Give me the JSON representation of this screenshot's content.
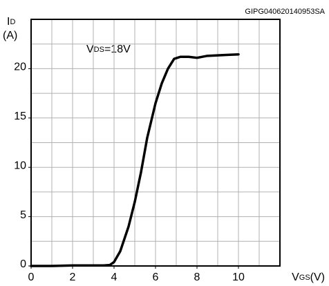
{
  "chart_data": {
    "type": "line",
    "code": "GIPG040620140953SA",
    "ylabel_main": "I",
    "ylabel_sub": "D",
    "ylabel_unit": "(A)",
    "xlabel_main": "V",
    "xlabel_sub": "GS",
    "xlabel_unit": "(V)",
    "annotation_main": "V",
    "annotation_sub": "DS",
    "annotation_rest": "=18V",
    "xlim": [
      0,
      12
    ],
    "ylim": [
      0,
      25
    ],
    "xticks": [
      0,
      2,
      4,
      6,
      8,
      10
    ],
    "yticks": [
      0,
      5,
      10,
      15,
      20
    ],
    "xgrid": [
      1,
      2,
      3,
      4,
      5,
      6,
      7,
      8,
      9,
      10,
      11
    ],
    "ygrid": [
      2.5,
      5,
      7.5,
      10,
      12.5,
      15,
      17.5,
      20,
      22.5
    ],
    "series": [
      {
        "color": "#000000",
        "x": [
          0,
          1,
          2,
          3,
          3.5,
          3.8,
          4,
          4.3,
          4.7,
          5,
          5.3,
          5.6,
          6,
          6.3,
          6.6,
          6.9,
          7.2,
          7.6,
          8,
          8.5,
          9,
          9.5,
          10
        ],
        "values": [
          0,
          0,
          0.05,
          0.05,
          0.05,
          0.1,
          0.4,
          1.5,
          4,
          6.5,
          9.5,
          13,
          16.5,
          18.5,
          20,
          21,
          21.2,
          21.2,
          21.1,
          21.3,
          21.35,
          21.4,
          21.45
        ]
      }
    ]
  }
}
